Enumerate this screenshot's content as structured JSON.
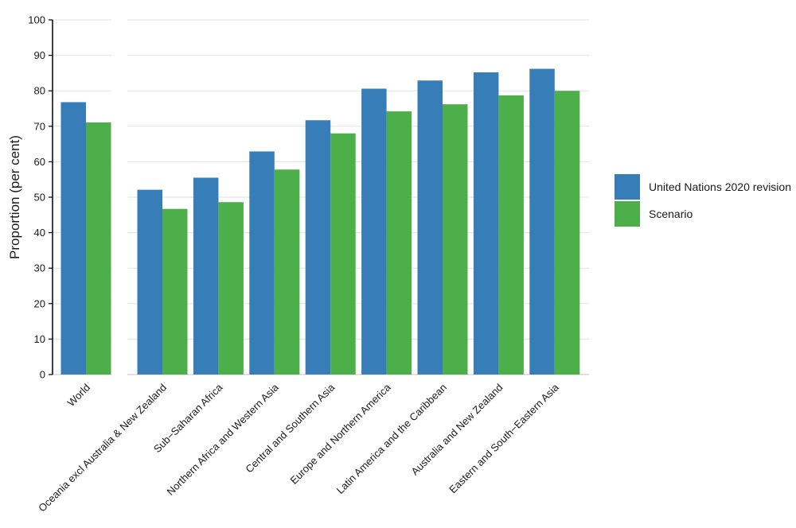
{
  "chart_data": {
    "type": "bar",
    "ylabel": "Proportion (per cent)",
    "xlabel": "",
    "ylim": [
      0,
      100
    ],
    "yticks": [
      0,
      10,
      20,
      30,
      40,
      50,
      60,
      70,
      80,
      90,
      100
    ],
    "grid": "horizontal",
    "legend_position": "right",
    "categories": [
      "World",
      "Oceania excl Australia & New Zealand",
      "Sub−Saharan Africa",
      "Northern Africa and Western Asia",
      "Central and Southern Asia",
      "Europe and Northern America",
      "Latin America and the Caribbean",
      "Australia and New Zealand",
      "Eastern and South−Eastern Asia"
    ],
    "series": [
      {
        "name": "United Nations 2020 revision",
        "color": "#377eb8",
        "values": [
          76.8,
          52.1,
          55.5,
          62.9,
          71.7,
          80.6,
          82.9,
          85.2,
          86.2
        ]
      },
      {
        "name": "Scenario",
        "color": "#4daf4a",
        "values": [
          71.1,
          46.7,
          48.6,
          57.8,
          68.0,
          74.2,
          76.2,
          78.7,
          80.0
        ]
      }
    ]
  }
}
